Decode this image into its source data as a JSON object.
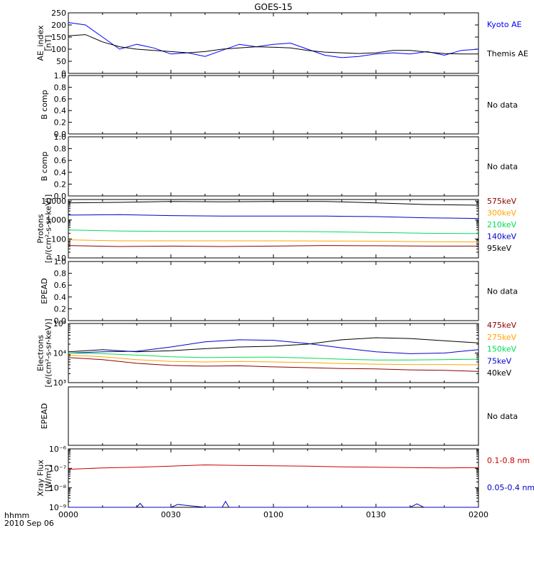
{
  "title": "GOES-15",
  "x_axis": {
    "tick_labels": [
      "0000",
      "0030",
      "0100",
      "0130",
      "0200"
    ],
    "corner_label": "hhmm",
    "date_label": "2010 Sep 06"
  },
  "colors": {
    "black": "#000000",
    "blue": "#0000ff",
    "red": "#cc0000",
    "darkred": "#8b0000",
    "orange": "#ffa500",
    "green": "#00dd55",
    "navy": "#0000cc"
  },
  "chart_data": [
    {
      "type": "line",
      "ylabel": [
        "AE_index",
        "[nT]"
      ],
      "yscale": "linear",
      "ylim": [
        0,
        250
      ],
      "ytick_labels": [
        "0",
        "50",
        "100",
        "150",
        "200",
        "250"
      ],
      "legend": [
        {
          "label": "Kyoto AE",
          "color": "#0000ff"
        },
        {
          "label": "Themis AE",
          "color": "#000000"
        }
      ],
      "series": [
        {
          "name": "Kyoto AE",
          "color": "#0000ff",
          "x": [
            0,
            5,
            10,
            15,
            20,
            25,
            30,
            35,
            40,
            45,
            50,
            55,
            60,
            65,
            70,
            75,
            80,
            85,
            90,
            95,
            100,
            105,
            110,
            115,
            120
          ],
          "y": [
            210,
            200,
            150,
            100,
            120,
            105,
            80,
            85,
            70,
            95,
            120,
            110,
            120,
            125,
            100,
            75,
            65,
            70,
            80,
            85,
            80,
            90,
            75,
            95,
            100
          ]
        },
        {
          "name": "Themis AE",
          "color": "#000000",
          "x": [
            0,
            5,
            10,
            15,
            20,
            25,
            30,
            35,
            40,
            45,
            50,
            55,
            60,
            65,
            70,
            75,
            80,
            85,
            90,
            95,
            100,
            105,
            110,
            115,
            120
          ],
          "y": [
            155,
            160,
            130,
            110,
            100,
            95,
            90,
            85,
            90,
            100,
            105,
            110,
            108,
            105,
            95,
            88,
            85,
            82,
            85,
            95,
            95,
            88,
            82,
            80,
            80
          ]
        }
      ]
    },
    {
      "type": "line",
      "ylabel": [
        "B comp"
      ],
      "yscale": "linear",
      "ylim": [
        0,
        1
      ],
      "ytick_labels": [
        "0.0",
        "0.2",
        "0.4",
        "0.6",
        "0.8",
        "1.0"
      ],
      "legend": [
        {
          "label": "No data",
          "color": "#000000"
        }
      ],
      "series": []
    },
    {
      "type": "line",
      "ylabel": [
        "B comp"
      ],
      "yscale": "linear",
      "ylim": [
        0,
        1
      ],
      "ytick_labels": [
        "0.0",
        "0.2",
        "0.4",
        "0.6",
        "0.8",
        "1.0"
      ],
      "legend": [
        {
          "label": "No data",
          "color": "#000000"
        }
      ],
      "series": []
    },
    {
      "type": "line",
      "ylabel": [
        "Protons",
        "[p/(cm²-s-sr-keV)]"
      ],
      "yscale": "log",
      "ylim": [
        10,
        12000
      ],
      "ytick_labels": [
        "10",
        "100",
        "1000",
        "10000"
      ],
      "ytick_values": [
        10,
        100,
        1000,
        10000
      ],
      "legend": [
        {
          "label": "575keV",
          "color": "#8b0000"
        },
        {
          "label": "300keV",
          "color": "#ffa500"
        },
        {
          "label": "210keV",
          "color": "#00dd55"
        },
        {
          "label": "140keV",
          "color": "#0000cc"
        },
        {
          "label": "95keV",
          "color": "#000000"
        }
      ],
      "series": [
        {
          "name": "95keV",
          "color": "#000000",
          "x": [
            0,
            15,
            30,
            45,
            60,
            75,
            90,
            105,
            120
          ],
          "y": [
            8000,
            8500,
            9500,
            9000,
            9500,
            9500,
            8000,
            6500,
            6000
          ]
        },
        {
          "name": "140keV",
          "color": "#0000cc",
          "x": [
            0,
            15,
            30,
            45,
            60,
            75,
            90,
            105,
            120
          ],
          "y": [
            1800,
            1900,
            1700,
            1600,
            1600,
            1600,
            1500,
            1300,
            1200
          ]
        },
        {
          "name": "210keV",
          "color": "#00dd55",
          "x": [
            0,
            15,
            30,
            45,
            60,
            75,
            90,
            105,
            120
          ],
          "y": [
            300,
            260,
            250,
            250,
            250,
            240,
            220,
            200,
            190
          ]
        },
        {
          "name": "300keV",
          "color": "#ffa500",
          "x": [
            0,
            15,
            30,
            45,
            60,
            75,
            90,
            105,
            120
          ],
          "y": [
            90,
            80,
            80,
            80,
            80,
            78,
            76,
            72,
            70
          ]
        },
        {
          "name": "575keV",
          "color": "#8b0000",
          "x": [
            0,
            15,
            30,
            45,
            60,
            75,
            90,
            105,
            120
          ],
          "y": [
            45,
            40,
            42,
            40,
            42,
            45,
            44,
            42,
            42
          ]
        }
      ]
    },
    {
      "type": "line",
      "ylabel": [
        "EPEAD"
      ],
      "yscale": "linear",
      "ylim": [
        0,
        1
      ],
      "ytick_labels": [
        "0.0",
        "0.2",
        "0.4",
        "0.6",
        "0.8",
        "1.0"
      ],
      "legend": [
        {
          "label": "No data",
          "color": "#000000"
        }
      ],
      "series": []
    },
    {
      "type": "line",
      "ylabel": [
        "Electrons",
        "[e/(cm²-s-sr-keV)]"
      ],
      "yscale": "log",
      "ylim": [
        1000,
        100000
      ],
      "ytick_labels": [
        "10³",
        "10⁴",
        "10⁵"
      ],
      "ytick_values": [
        1000,
        10000,
        100000
      ],
      "legend": [
        {
          "label": "475keV",
          "color": "#8b0000"
        },
        {
          "label": "275keV",
          "color": "#ffa500"
        },
        {
          "label": "150keV",
          "color": "#00dd55"
        },
        {
          "label": "75keV",
          "color": "#0000cc"
        },
        {
          "label": "40keV",
          "color": "#000000"
        }
      ],
      "series": [
        {
          "name": "40keV",
          "color": "#000000",
          "x": [
            0,
            10,
            20,
            30,
            40,
            50,
            60,
            70,
            80,
            90,
            100,
            110,
            120
          ],
          "y": [
            11000,
            13000,
            11000,
            12000,
            14000,
            16000,
            17000,
            20000,
            28000,
            33000,
            31000,
            26000,
            22000
          ]
        },
        {
          "name": "75keV",
          "color": "#0000cc",
          "x": [
            0,
            10,
            20,
            30,
            40,
            50,
            60,
            70,
            80,
            90,
            100,
            110,
            120
          ],
          "y": [
            10000,
            11000,
            11500,
            16000,
            24000,
            28000,
            27000,
            21000,
            15000,
            11000,
            9500,
            10000,
            13000
          ]
        },
        {
          "name": "150keV",
          "color": "#00dd55",
          "x": [
            0,
            10,
            20,
            30,
            40,
            50,
            60,
            70,
            80,
            90,
            100,
            110,
            120
          ],
          "y": [
            10000,
            9500,
            8500,
            7500,
            7000,
            7200,
            7300,
            6800,
            6200,
            5800,
            5800,
            6000,
            6200
          ]
        },
        {
          "name": "275keV",
          "color": "#ffa500",
          "x": [
            0,
            10,
            20,
            30,
            40,
            50,
            60,
            70,
            80,
            90,
            100,
            110,
            120
          ],
          "y": [
            8500,
            7500,
            6000,
            5200,
            5000,
            5200,
            5000,
            4800,
            4400,
            4200,
            4100,
            4100,
            4000
          ]
        },
        {
          "name": "475keV",
          "color": "#8b0000",
          "x": [
            0,
            10,
            20,
            30,
            40,
            50,
            60,
            70,
            80,
            90,
            100,
            110,
            120
          ],
          "y": [
            7000,
            6000,
            4500,
            3800,
            3600,
            3700,
            3400,
            3200,
            3000,
            2900,
            2700,
            2600,
            2400
          ]
        }
      ]
    },
    {
      "type": "line",
      "ylabel": [
        "EPEAD"
      ],
      "yscale": "linear",
      "ylim": [
        0,
        1
      ],
      "ytick_labels": [],
      "legend": [
        {
          "label": "No data",
          "color": "#000000"
        }
      ],
      "series": []
    },
    {
      "type": "line",
      "ylabel": [
        "Xray Flux",
        "[W/m²]"
      ],
      "yscale": "log",
      "ylim": [
        1e-09,
        1e-06
      ],
      "ytick_labels": [
        "10⁻⁹",
        "10⁻⁸",
        "10⁻⁷",
        "10⁻⁶"
      ],
      "ytick_values": [
        1e-09,
        1e-08,
        1e-07,
        1e-06
      ],
      "legend": [
        {
          "label": "0.1-0.8 nm",
          "color": "#cc0000"
        },
        {
          "label": "0.05-0.4 nm",
          "color": "#0000cc"
        }
      ],
      "series": [
        {
          "name": "0.1-0.8 nm",
          "color": "#cc0000",
          "x": [
            0,
            10,
            20,
            30,
            40,
            50,
            60,
            70,
            80,
            90,
            100,
            110,
            120
          ],
          "y": [
            9e-08,
            1.05e-07,
            1.15e-07,
            1.3e-07,
            1.5e-07,
            1.4e-07,
            1.35e-07,
            1.3e-07,
            1.2e-07,
            1.15e-07,
            1.1e-07,
            1.05e-07,
            1.1e-07
          ]
        },
        {
          "name": "0.05-0.4 nm",
          "color": "#0000cc",
          "x": [
            0,
            10,
            20,
            21,
            22,
            30,
            32,
            40,
            45,
            46,
            47,
            60,
            100,
            102,
            104,
            120
          ],
          "y": [
            1e-09,
            1e-09,
            1e-09,
            1.6e-09,
            1e-09,
            1e-09,
            1.4e-09,
            1e-09,
            1e-09,
            2e-09,
            1e-09,
            1e-09,
            1e-09,
            1.5e-09,
            1e-09,
            1e-09
          ]
        }
      ]
    }
  ]
}
